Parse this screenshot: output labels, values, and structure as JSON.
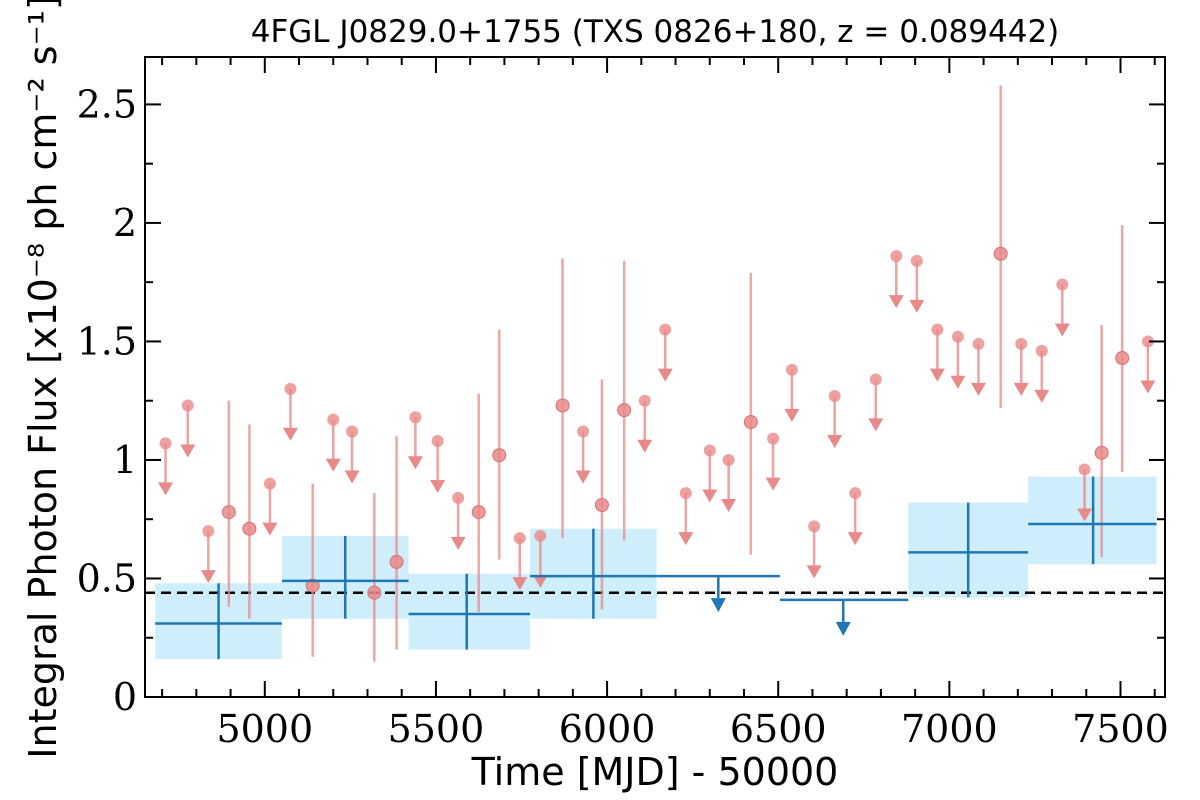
{
  "chart_data": {
    "type": "scatter",
    "title": "4FGL J0829.0+1755 (TXS 0826+180, z = 0.089442)",
    "xlabel": "Time [MJD] - 50000",
    "ylabel": "Integral Photon Flux [x10⁻⁸ ph cm⁻² s⁻¹]",
    "xlim": [
      4650,
      7630
    ],
    "ylim": [
      0,
      2.7
    ],
    "x_ticks": [
      5000,
      5500,
      6000,
      6500,
      7000,
      7500
    ],
    "x_tick_labels": [
      "5000",
      "5500",
      "6000",
      "6500",
      "7000",
      "7500"
    ],
    "y_ticks": [
      0,
      0.5,
      1,
      1.5,
      2,
      2.5
    ],
    "y_tick_labels": [
      "0",
      "0.5",
      "1",
      "1.5",
      "2",
      "2.5"
    ],
    "reference_level": 0.44,
    "colors": {
      "short_bins": "#e88a8a",
      "long_bins": "#1f77b4",
      "band": "#cfeefc",
      "reference": "#000000"
    },
    "series": [
      {
        "kind": "short-bin detections",
        "points": [
          {
            "x": 4895,
            "y": 0.78,
            "lo": 0.38,
            "hi": 1.25
          },
          {
            "x": 4955,
            "y": 0.71,
            "lo": 0.33,
            "hi": 1.15
          },
          {
            "x": 5140,
            "y": 0.47,
            "lo": 0.17,
            "hi": 0.9
          },
          {
            "x": 5320,
            "y": 0.44,
            "lo": 0.15,
            "hi": 0.86
          },
          {
            "x": 5385,
            "y": 0.57,
            "lo": 0.2,
            "hi": 1.1
          },
          {
            "x": 5625,
            "y": 0.78,
            "lo": 0.36,
            "hi": 1.28
          },
          {
            "x": 5685,
            "y": 1.02,
            "lo": 0.58,
            "hi": 1.55
          },
          {
            "x": 5870,
            "y": 1.23,
            "lo": 0.67,
            "hi": 1.85
          },
          {
            "x": 5985,
            "y": 0.81,
            "lo": 0.37,
            "hi": 1.34
          },
          {
            "x": 6050,
            "y": 1.21,
            "lo": 0.66,
            "hi": 1.84
          },
          {
            "x": 6420,
            "y": 1.16,
            "lo": 0.6,
            "hi": 1.79
          },
          {
            "x": 7150,
            "y": 1.87,
            "lo": 1.22,
            "hi": 2.58
          },
          {
            "x": 7445,
            "y": 1.03,
            "lo": 0.59,
            "hi": 1.57
          },
          {
            "x": 7505,
            "y": 1.43,
            "lo": 0.95,
            "hi": 1.99
          }
        ]
      },
      {
        "kind": "short-bin upper limits",
        "points": [
          {
            "x": 4710,
            "y": 1.07
          },
          {
            "x": 4775,
            "y": 1.23
          },
          {
            "x": 4835,
            "y": 0.7
          },
          {
            "x": 5015,
            "y": 0.9
          },
          {
            "x": 5075,
            "y": 1.3
          },
          {
            "x": 5200,
            "y": 1.17
          },
          {
            "x": 5255,
            "y": 1.12
          },
          {
            "x": 5440,
            "y": 1.18
          },
          {
            "x": 5505,
            "y": 1.08
          },
          {
            "x": 5565,
            "y": 0.84
          },
          {
            "x": 5745,
            "y": 0.67
          },
          {
            "x": 5805,
            "y": 0.68
          },
          {
            "x": 5930,
            "y": 1.12
          },
          {
            "x": 6110,
            "y": 1.25
          },
          {
            "x": 6170,
            "y": 1.55
          },
          {
            "x": 6230,
            "y": 0.86
          },
          {
            "x": 6300,
            "y": 1.04
          },
          {
            "x": 6355,
            "y": 1.0
          },
          {
            "x": 6485,
            "y": 1.09
          },
          {
            "x": 6540,
            "y": 1.38
          },
          {
            "x": 6605,
            "y": 0.72
          },
          {
            "x": 6665,
            "y": 1.27
          },
          {
            "x": 6725,
            "y": 0.86
          },
          {
            "x": 6785,
            "y": 1.34
          },
          {
            "x": 6845,
            "y": 1.86
          },
          {
            "x": 6905,
            "y": 1.84
          },
          {
            "x": 6965,
            "y": 1.55
          },
          {
            "x": 7025,
            "y": 1.52
          },
          {
            "x": 7085,
            "y": 1.49
          },
          {
            "x": 7210,
            "y": 1.49
          },
          {
            "x": 7270,
            "y": 1.46
          },
          {
            "x": 7330,
            "y": 1.74
          },
          {
            "x": 7395,
            "y": 0.96
          },
          {
            "x": 7580,
            "y": 1.5
          }
        ]
      },
      {
        "kind": "long-bin detections",
        "points": [
          {
            "x": 4865,
            "x0": 4680,
            "x1": 5050,
            "y": 0.31,
            "lo": 0.16,
            "hi": 0.48,
            "band_lo": 0.16,
            "band_hi": 0.48
          },
          {
            "x": 5235,
            "x0": 5050,
            "x1": 5420,
            "y": 0.49,
            "lo": 0.33,
            "hi": 0.68,
            "band_lo": 0.33,
            "band_hi": 0.68
          },
          {
            "x": 5590,
            "x0": 5420,
            "x1": 5775,
            "y": 0.35,
            "lo": 0.2,
            "hi": 0.52,
            "band_lo": 0.2,
            "band_hi": 0.52
          },
          {
            "x": 5960,
            "x0": 5775,
            "x1": 6145,
            "y": 0.51,
            "lo": 0.33,
            "hi": 0.71,
            "band_lo": 0.33,
            "band_hi": 0.71
          },
          {
            "x": 7055,
            "x0": 6880,
            "x1": 7230,
            "y": 0.61,
            "lo": 0.42,
            "hi": 0.82,
            "band_lo": 0.42,
            "band_hi": 0.82
          },
          {
            "x": 7420,
            "x0": 7230,
            "x1": 7605,
            "y": 0.73,
            "lo": 0.56,
            "hi": 0.93,
            "band_lo": 0.56,
            "band_hi": 0.93
          }
        ]
      },
      {
        "kind": "long-bin upper limits",
        "points": [
          {
            "x": 6325,
            "x0": 6145,
            "x1": 6505,
            "y": 0.51
          },
          {
            "x": 6690,
            "x0": 6505,
            "x1": 6880,
            "y": 0.41
          }
        ]
      }
    ]
  }
}
